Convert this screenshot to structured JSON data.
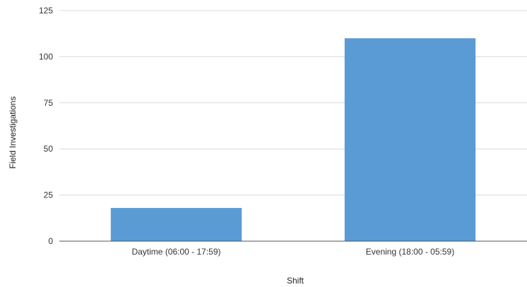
{
  "chart_data": {
    "type": "bar",
    "title": "",
    "xlabel": "Shift",
    "ylabel": "Field Investigations",
    "categories": [
      "Daytime (06:00 - 17:59)",
      "Evening (18:00 - 05:59)"
    ],
    "series": [
      {
        "values": [
          18,
          110
        ],
        "color": "#5b9bd5"
      }
    ],
    "ylim": [
      0,
      125
    ],
    "yticks": [
      "0",
      "25",
      "50",
      "75",
      "100",
      "125"
    ],
    "grid": true,
    "legend": "none"
  }
}
